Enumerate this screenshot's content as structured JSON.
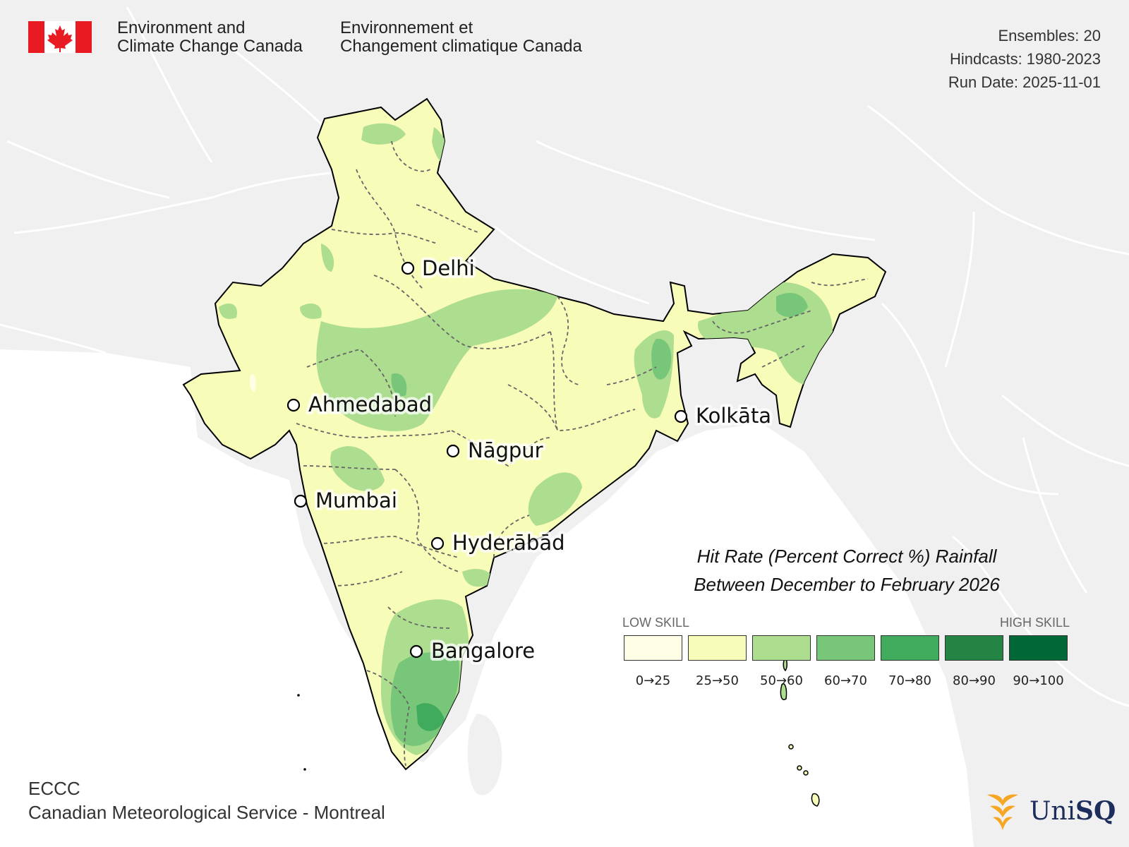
{
  "header": {
    "agency_en_line1": "Environment and",
    "agency_en_line2": "Climate Change Canada",
    "agency_fr_line1": "Environnement et",
    "agency_fr_line2": "Changement climatique Canada"
  },
  "meta": {
    "ensembles": "Ensembles: 20",
    "hindcasts": "Hindcasts: 1980-2023",
    "run_date": "Run Date: 2025-11-01"
  },
  "cities": [
    {
      "name": "Delhi"
    },
    {
      "name": "Ahmedabad"
    },
    {
      "name": "Kolkāta"
    },
    {
      "name": "Nāgpur"
    },
    {
      "name": "Mumbai"
    },
    {
      "name": "Hyderābād"
    },
    {
      "name": "Bangalore"
    }
  ],
  "legend": {
    "title_line1": "Hit Rate (Percent Correct %) Rainfall",
    "title_line2": "Between December to February 2026",
    "low_label": "LOW SKILL",
    "high_label": "HIGH SKILL",
    "bins": [
      {
        "label": "0→25",
        "color": "#ffffe5"
      },
      {
        "label": "25→50",
        "color": "#f7fcb9"
      },
      {
        "label": "50→60",
        "color": "#addd8e"
      },
      {
        "label": "60→70",
        "color": "#78c679"
      },
      {
        "label": "70→80",
        "color": "#41ab5d"
      },
      {
        "label": "80→90",
        "color": "#238443"
      },
      {
        "label": "90→100",
        "color": "#006837"
      }
    ]
  },
  "footer": {
    "line1": "ECCC",
    "line2": "Canadian Meteorological Service - Montreal"
  },
  "logo": {
    "unisq_prefix": "Uni",
    "unisq_suffix": "SQ",
    "unisq_color": "#f5a623"
  }
}
